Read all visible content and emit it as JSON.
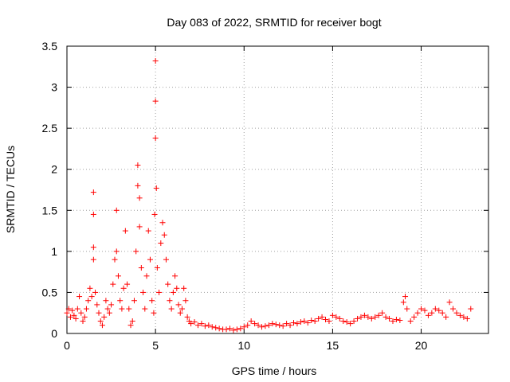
{
  "chart_data": {
    "type": "scatter",
    "title": "Day 083 of 2022, SRMTID for receiver bogt",
    "xlabel": "GPS time / hours",
    "ylabel": "SRMTID / TECUs",
    "xlim": [
      0,
      23.8
    ],
    "ylim": [
      0,
      3.5
    ],
    "x_ticks": [
      0,
      5,
      10,
      15,
      20
    ],
    "x_tick_labels": [
      "0",
      "5",
      "10",
      "15",
      "20"
    ],
    "y_ticks": [
      0,
      0.5,
      1,
      1.5,
      2,
      2.5,
      3,
      3.5
    ],
    "y_tick_labels": [
      "0",
      "0.5",
      "1",
      "1.5",
      "2",
      "2.5",
      "3",
      "3.5"
    ],
    "grid": true,
    "marker": "+",
    "marker_color": "#ff0000",
    "series": [
      {
        "name": "SRMTID",
        "x": [
          0.0,
          0.1,
          0.2,
          0.3,
          0.4,
          0.5,
          0.6,
          0.7,
          0.8,
          0.9,
          1.0,
          1.1,
          1.2,
          1.3,
          1.4,
          1.5,
          1.5,
          1.5,
          1.5,
          1.6,
          1.7,
          1.8,
          1.9,
          2.0,
          2.1,
          2.2,
          2.3,
          2.4,
          2.5,
          2.6,
          2.7,
          2.8,
          2.8,
          2.9,
          3.0,
          3.1,
          3.2,
          3.3,
          3.4,
          3.5,
          3.6,
          3.7,
          3.8,
          3.9,
          4.0,
          4.0,
          4.1,
          4.1,
          4.2,
          4.3,
          4.4,
          4.5,
          4.6,
          4.7,
          4.8,
          4.9,
          4.95,
          5.0,
          5.0,
          5.0,
          5.05,
          5.1,
          5.2,
          5.3,
          5.4,
          5.5,
          5.6,
          5.7,
          5.8,
          5.9,
          6.0,
          6.1,
          6.2,
          6.3,
          6.4,
          6.5,
          6.6,
          6.7,
          6.8,
          6.9,
          7.0,
          7.2,
          7.4,
          7.6,
          7.8,
          8.0,
          8.2,
          8.4,
          8.6,
          8.8,
          9.0,
          9.2,
          9.4,
          9.6,
          9.8,
          10.0,
          10.2,
          10.4,
          10.6,
          10.8,
          11.0,
          11.2,
          11.4,
          11.6,
          11.8,
          12.0,
          12.2,
          12.4,
          12.6,
          12.8,
          13.0,
          13.2,
          13.4,
          13.6,
          13.8,
          14.0,
          14.2,
          14.4,
          14.6,
          14.8,
          15.0,
          15.2,
          15.4,
          15.6,
          15.8,
          16.0,
          16.2,
          16.4,
          16.6,
          16.8,
          17.0,
          17.2,
          17.4,
          17.6,
          17.8,
          18.0,
          18.2,
          18.4,
          18.6,
          18.8,
          19.0,
          19.1,
          19.2,
          19.4,
          19.6,
          19.8,
          20.0,
          20.2,
          20.4,
          20.6,
          20.8,
          21.0,
          21.2,
          21.4,
          21.6,
          21.8,
          22.0,
          22.2,
          22.4,
          22.6,
          22.8
        ],
        "y": [
          0.25,
          0.3,
          0.2,
          0.28,
          0.22,
          0.18,
          0.3,
          0.45,
          0.25,
          0.15,
          0.2,
          0.3,
          0.4,
          0.55,
          0.45,
          1.72,
          1.45,
          1.05,
          0.9,
          0.5,
          0.35,
          0.25,
          0.15,
          0.1,
          0.2,
          0.4,
          0.3,
          0.25,
          0.35,
          0.6,
          0.9,
          1.5,
          1.0,
          0.7,
          0.4,
          0.3,
          0.55,
          1.25,
          0.6,
          0.3,
          0.1,
          0.15,
          0.4,
          1.0,
          2.05,
          1.8,
          1.65,
          1.3,
          0.8,
          0.5,
          0.3,
          0.7,
          1.25,
          0.9,
          0.4,
          0.25,
          1.45,
          3.32,
          2.83,
          2.38,
          1.77,
          0.8,
          0.5,
          1.1,
          1.35,
          1.2,
          0.9,
          0.6,
          0.4,
          0.3,
          0.5,
          0.7,
          0.55,
          0.35,
          0.25,
          0.3,
          0.55,
          0.4,
          0.2,
          0.15,
          0.12,
          0.14,
          0.1,
          0.12,
          0.09,
          0.1,
          0.08,
          0.07,
          0.06,
          0.05,
          0.05,
          0.06,
          0.04,
          0.05,
          0.06,
          0.08,
          0.1,
          0.15,
          0.12,
          0.1,
          0.08,
          0.09,
          0.1,
          0.12,
          0.11,
          0.1,
          0.09,
          0.12,
          0.1,
          0.13,
          0.12,
          0.14,
          0.15,
          0.13,
          0.16,
          0.15,
          0.18,
          0.2,
          0.17,
          0.15,
          0.22,
          0.2,
          0.18,
          0.15,
          0.14,
          0.12,
          0.15,
          0.18,
          0.2,
          0.22,
          0.2,
          0.18,
          0.2,
          0.22,
          0.25,
          0.2,
          0.18,
          0.15,
          0.17,
          0.16,
          0.38,
          0.45,
          0.3,
          0.15,
          0.2,
          0.25,
          0.3,
          0.28,
          0.22,
          0.25,
          0.3,
          0.28,
          0.25,
          0.2,
          0.38,
          0.3,
          0.25,
          0.22,
          0.2,
          0.18,
          0.3
        ]
      }
    ]
  }
}
